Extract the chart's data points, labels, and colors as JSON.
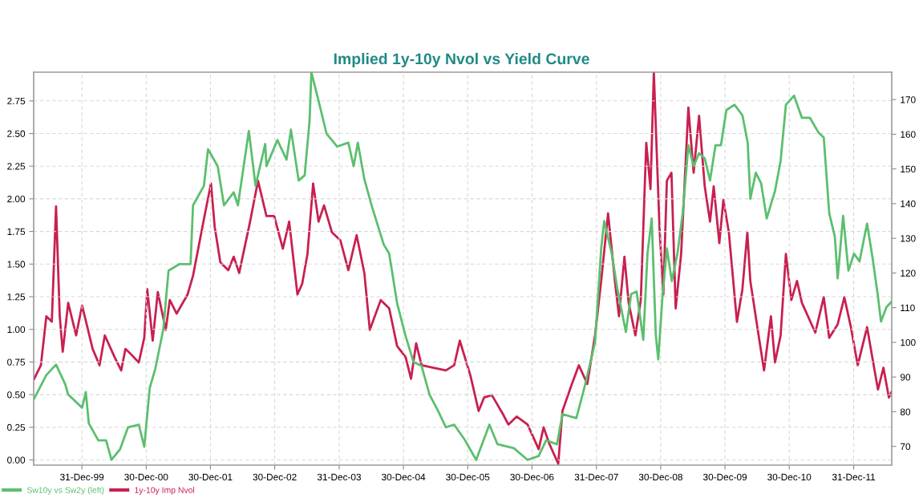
{
  "chart_data": {
    "type": "line",
    "title": "Implied 1y-10y Nvol vs Yield Curve",
    "legend": "bottom left",
    "grid": true,
    "line_style": "solid",
    "marker": "none",
    "xlim": [
      "1999-04-01",
      "2012-08-03"
    ],
    "xticks": [
      {
        "value": "1999-12-31",
        "label": "31-Dec-99"
      },
      {
        "value": "2000-12-30",
        "label": "30-Dec-00"
      },
      {
        "value": "2001-12-30",
        "label": "30-Dec-01"
      },
      {
        "value": "2002-12-30",
        "label": "30-Dec-02"
      },
      {
        "value": "2003-12-31",
        "label": "31-Dec-03"
      },
      {
        "value": "2004-12-30",
        "label": "30-Dec-04"
      },
      {
        "value": "2005-12-30",
        "label": "30-Dec-05"
      },
      {
        "value": "2006-12-30",
        "label": "30-Dec-06"
      },
      {
        "value": "2007-12-31",
        "label": "31-Dec-07"
      },
      {
        "value": "2008-12-30",
        "label": "30-Dec-08"
      },
      {
        "value": "2009-12-30",
        "label": "30-Dec-09"
      },
      {
        "value": "2010-12-30",
        "label": "30-Dec-10"
      },
      {
        "value": "2011-12-31",
        "label": "31-Dec-11"
      }
    ],
    "ylim": [
      -0.04,
      2.97
    ],
    "yticks": [
      {
        "value": 0,
        "label": "0.00"
      },
      {
        "value": 0.25,
        "label": "0.25"
      },
      {
        "value": 0.5,
        "label": "0.50"
      },
      {
        "value": 0.75,
        "label": "0.75"
      },
      {
        "value": 1,
        "label": "1.00"
      },
      {
        "value": 1.25,
        "label": "1.25"
      },
      {
        "value": 1.5,
        "label": "1.50"
      },
      {
        "value": 1.75,
        "label": "1.75"
      },
      {
        "value": 2,
        "label": "2.00"
      },
      {
        "value": 2.25,
        "label": "2.25"
      },
      {
        "value": 2.5,
        "label": "2.50"
      },
      {
        "value": 2.75,
        "label": "2.75"
      }
    ],
    "y2lim": [
      64.6,
      177.9
    ],
    "y2ticks": [
      70,
      80,
      90,
      100,
      110,
      120,
      130,
      140,
      150,
      160,
      170
    ],
    "series": [
      {
        "name": "Sw10y vs Sw2y (left)",
        "color": "#5bbf6e",
        "axis": "y",
        "x": [
          "1999-04-04",
          "1999-06-12",
          "1999-08-06",
          "1999-09-27",
          "1999-10-14",
          "2000-01-01",
          "2000-01-22",
          "2000-02-08",
          "2000-04-02",
          "2000-05-16",
          "2000-06-16",
          "2000-08-03",
          "2000-09-18",
          "2000-11-18",
          "2000-12-19",
          "2001-01-19",
          "2001-02-20",
          "2001-04-06",
          "2001-05-06",
          "2001-07-07",
          "2001-09-08",
          "2001-09-22",
          "2001-11-23",
          "2001-12-16",
          "2002-02-09",
          "2002-03-17",
          "2002-05-11",
          "2002-06-04",
          "2002-08-05",
          "2002-09-12",
          "2002-11-06",
          "2002-11-13",
          "2003-01-14",
          "2003-03-07",
          "2003-04-01",
          "2003-05-15",
          "2003-06-18",
          "2003-07-16",
          "2003-07-26",
          "2003-09-05",
          "2003-10-20",
          "2003-12-20",
          "2004-02-21",
          "2004-03-22",
          "2004-04-15",
          "2004-05-22",
          "2004-07-02",
          "2004-09-09",
          "2004-10-10",
          "2004-11-24",
          "2005-01-11",
          "2005-02-25",
          "2005-04-12",
          "2005-05-27",
          "2005-07-13",
          "2005-08-28",
          "2005-10-14",
          "2005-12-15",
          "2006-02-16",
          "2006-05-02",
          "2006-06-17",
          "2006-09-18",
          "2006-12-05",
          "2007-02-06",
          "2007-03-20",
          "2007-05-21",
          "2007-06-21",
          "2007-09-08",
          "2007-10-23",
          "2007-12-23",
          "2008-01-27",
          "2008-02-13",
          "2008-03-27",
          "2008-04-28",
          "2008-06-15",
          "2008-07-15",
          "2008-08-15",
          "2008-09-22",
          "2008-10-16",
          "2008-11-09",
          "2008-12-02",
          "2008-12-16",
          "2009-01-10",
          "2009-02-03",
          "2009-03-03",
          "2009-04-04",
          "2009-05-04",
          "2009-06-05",
          "2009-07-05",
          "2009-08-05",
          "2009-09-06",
          "2009-10-06",
          "2009-11-06",
          "2009-12-07",
          "2010-01-07",
          "2010-02-22",
          "2010-04-08",
          "2010-05-08",
          "2010-05-23",
          "2010-06-23",
          "2010-07-23",
          "2010-08-24",
          "2010-10-10",
          "2010-11-11",
          "2010-12-11",
          "2011-01-26",
          "2011-03-12",
          "2011-04-27",
          "2011-06-13",
          "2011-07-14",
          "2011-08-14",
          "2011-09-15",
          "2011-10-01",
          "2011-11-01",
          "2011-12-01",
          "2012-01-02",
          "2012-02-02",
          "2012-03-16",
          "2012-04-17",
          "2012-05-17",
          "2012-06-03",
          "2012-07-04",
          "2012-08-01"
        ],
        "values": [
          0.47,
          0.65,
          0.73,
          0.58,
          0.5,
          0.4,
          0.52,
          0.28,
          0.15,
          0.15,
          0.0,
          0.08,
          0.25,
          0.27,
          0.1,
          0.55,
          0.7,
          1.0,
          1.45,
          1.5,
          1.5,
          1.95,
          2.1,
          2.38,
          2.25,
          1.95,
          2.05,
          1.95,
          2.52,
          2.1,
          2.42,
          2.25,
          2.45,
          2.3,
          2.53,
          2.14,
          2.18,
          2.6,
          2.97,
          2.75,
          2.5,
          2.4,
          2.43,
          2.25,
          2.43,
          2.15,
          1.95,
          1.65,
          1.58,
          1.2,
          0.95,
          0.75,
          0.72,
          0.5,
          0.38,
          0.25,
          0.27,
          0.15,
          0.0,
          0.27,
          0.12,
          0.09,
          0.0,
          0.03,
          0.15,
          0.12,
          0.35,
          0.32,
          0.55,
          0.9,
          1.62,
          1.83,
          1.58,
          1.31,
          0.98,
          1.27,
          1.29,
          0.92,
          1.58,
          1.85,
          0.96,
          0.77,
          1.27,
          1.62,
          1.37,
          1.58,
          1.89,
          2.41,
          2.25,
          2.35,
          2.31,
          2.14,
          2.41,
          2.41,
          2.68,
          2.72,
          2.64,
          2.43,
          2.0,
          2.2,
          2.12,
          1.85,
          2.06,
          2.29,
          2.72,
          2.79,
          2.62,
          2.62,
          2.51,
          2.47,
          1.89,
          1.71,
          1.39,
          1.87,
          1.45,
          1.58,
          1.52,
          1.81,
          1.54,
          1.25,
          1.06,
          1.17,
          1.21
        ]
      },
      {
        "name": "1y-10y Imp Nvol",
        "color": "#c8204f",
        "axis": "y2",
        "x": [
          "1999-04-04",
          "1999-05-12",
          "1999-06-12",
          "1999-07-13",
          "1999-08-06",
          "1999-08-27",
          "1999-09-13",
          "1999-10-14",
          "1999-11-28",
          "2000-01-01",
          "2000-03-01",
          "2000-04-09",
          "2000-05-09",
          "2000-07-03",
          "2000-08-10",
          "2000-09-03",
          "2000-10-04",
          "2000-11-18",
          "2000-12-19",
          "2001-01-05",
          "2001-02-05",
          "2001-03-06",
          "2001-04-20",
          "2001-05-13",
          "2001-06-21",
          "2001-08-22",
          "2001-09-22",
          "2001-11-23",
          "2002-01-02",
          "2002-01-23",
          "2002-02-24",
          "2002-04-10",
          "2002-05-11",
          "2002-06-11",
          "2002-08-12",
          "2002-09-26",
          "2002-11-13",
          "2002-12-27",
          "2003-02-14",
          "2003-03-22",
          "2003-05-08",
          "2003-06-04",
          "2003-07-04",
          "2003-08-05",
          "2003-09-05",
          "2003-10-06",
          "2003-11-20",
          "2004-01-07",
          "2004-02-21",
          "2004-04-08",
          "2004-05-22",
          "2004-06-22",
          "2004-08-23",
          "2004-10-10",
          "2004-11-24",
          "2005-01-11",
          "2005-02-11",
          "2005-03-12",
          "2005-04-12",
          "2005-06-13",
          "2005-08-28",
          "2005-10-14",
          "2005-11-15",
          "2006-01-15",
          "2006-03-02",
          "2006-04-02",
          "2006-05-16",
          "2006-07-17",
          "2006-08-18",
          "2006-10-04",
          "2006-12-05",
          "2007-02-06",
          "2007-03-06",
          "2007-04-07",
          "2007-05-28",
          "2007-06-21",
          "2007-08-08",
          "2007-09-22",
          "2007-11-09",
          "2007-12-23",
          "2008-01-27",
          "2008-03-06",
          "2008-04-14",
          "2008-05-07",
          "2008-06-07",
          "2008-07-01",
          "2008-08-08",
          "2008-09-08",
          "2008-10-09",
          "2008-11-02",
          "2008-11-21",
          "2008-12-09",
          "2008-12-23",
          "2009-01-14",
          "2009-02-03",
          "2009-03-01",
          "2009-03-25",
          "2009-04-25",
          "2009-06-05",
          "2009-07-05",
          "2009-08-05",
          "2009-09-06",
          "2009-10-06",
          "2009-10-27",
          "2009-11-28",
          "2009-12-21",
          "2010-01-21",
          "2010-03-08",
          "2010-04-08",
          "2010-05-06",
          "2010-05-23",
          "2010-07-09",
          "2010-08-09",
          "2010-09-17",
          "2010-10-10",
          "2010-11-11",
          "2010-12-11",
          "2011-01-11",
          "2011-02-12",
          "2011-03-12",
          "2011-05-27",
          "2011-07-14",
          "2011-08-14",
          "2011-10-01",
          "2011-11-08",
          "2011-12-15",
          "2012-01-23",
          "2012-03-16",
          "2012-04-17",
          "2012-05-17",
          "2012-06-17",
          "2012-07-18",
          "2012-08-01"
        ],
        "values": [
          89.5,
          93.4,
          107.5,
          106,
          139.2,
          107.5,
          97.3,
          111.4,
          102,
          110.6,
          98.1,
          93.4,
          102,
          95.8,
          91.9,
          98.1,
          96.6,
          94.2,
          101.3,
          115.3,
          100.5,
          114.5,
          103.6,
          112.2,
          108.3,
          113.8,
          119.2,
          135.6,
          145.8,
          133.3,
          123.1,
          120.8,
          124.7,
          120,
          134.8,
          146.6,
          136.4,
          136.4,
          127,
          134.8,
          113.8,
          116.9,
          125.5,
          145.8,
          134.8,
          139.5,
          131.7,
          129.4,
          120.8,
          130.9,
          120,
          103.6,
          112.2,
          109.8,
          98.9,
          95.8,
          89.5,
          99.7,
          93.4,
          92.7,
          91.9,
          93.4,
          100.5,
          90.3,
          80.2,
          84.1,
          84.8,
          79.4,
          76.3,
          78.6,
          76.3,
          69.2,
          75.5,
          70.8,
          65,
          80.2,
          87.2,
          93.4,
          88,
          102,
          117.7,
          137.2,
          117.7,
          107.5,
          124.7,
          111.4,
          102,
          112.2,
          157.5,
          144.2,
          177.8,
          152.8,
          133.3,
          113.8,
          146.6,
          148.9,
          109.8,
          125.5,
          167.7,
          148.9,
          165.3,
          145,
          134.8,
          145,
          128.6,
          141.1,
          131.7,
          105.9,
          115.3,
          131.7,
          117.7,
          102,
          91.9,
          107.5,
          94.2,
          102,
          125.5,
          112.2,
          117.7,
          111.4,
          102.8,
          113,
          101.3,
          105.2,
          113,
          104.4,
          93.4,
          104.4,
          95,
          86.4,
          92.7,
          84.1,
          85.6
        ]
      }
    ]
  }
}
